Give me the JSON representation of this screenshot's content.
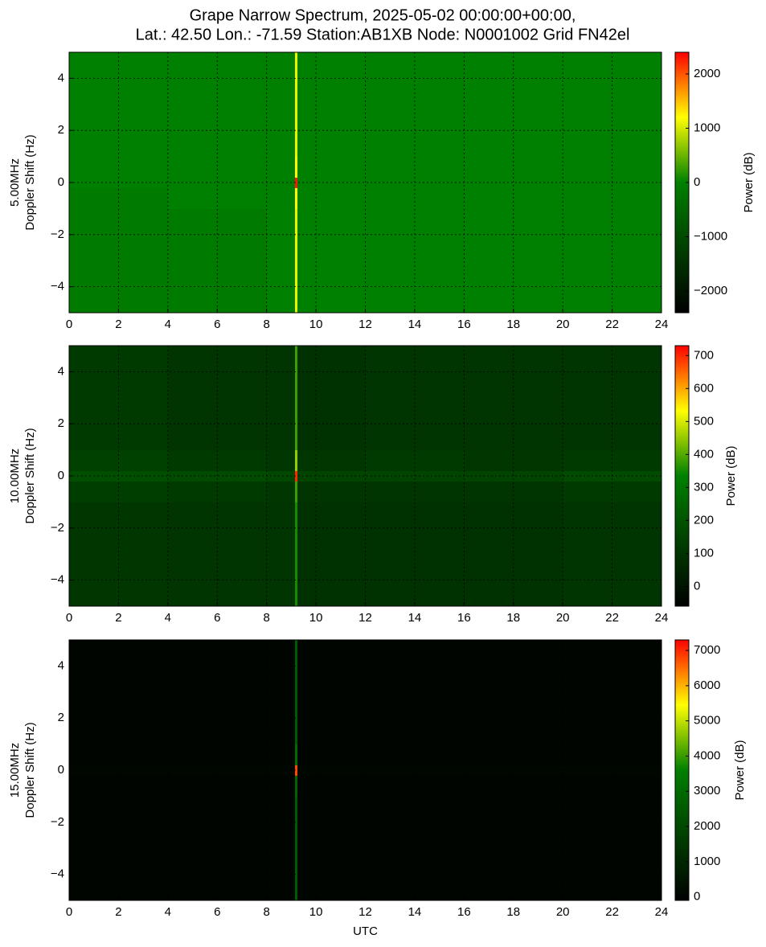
{
  "title": [
    "Grape Narrow Spectrum, 2025-05-02 00:00:00+00:00,",
    "Lat.: 42.50 Lon.: -71.59 Station:AB1XB Node: N0001002 Grid FN42el"
  ],
  "colormap": [
    {
      "pos": 0,
      "color": "#000000"
    },
    {
      "pos": 0.5,
      "color": "#008000"
    },
    {
      "pos": 0.75,
      "color": "#ffff00"
    },
    {
      "pos": 1,
      "color": "#ff0000"
    }
  ],
  "chart_data": [
    {
      "type": "heatmap",
      "ylabel": [
        "5.00MHz",
        "Doppler Shift (Hz)"
      ],
      "colorbar_label": "Power (dB)",
      "grid": true,
      "xlim": [
        0,
        24
      ],
      "ylim": [
        -5,
        5
      ],
      "xticks": [
        0,
        2,
        4,
        6,
        8,
        10,
        12,
        14,
        16,
        18,
        20,
        22,
        24
      ],
      "yticks": [
        {
          "value": -4,
          "label": "−4"
        },
        {
          "value": -2,
          "label": "−2"
        },
        0,
        2,
        4
      ],
      "clim": [
        -2400,
        2400
      ],
      "cticks": [
        {
          "value": -2000,
          "label": "−2000"
        },
        {
          "value": -1000,
          "label": "−1000"
        },
        0,
        1000,
        2000
      ],
      "xbins": [
        0,
        4,
        8,
        9.15,
        9.25,
        12,
        16,
        20,
        24
      ],
      "ybins": [
        -5,
        -1,
        -0.2,
        0.2,
        1,
        5
      ],
      "values": [
        [
          -100,
          -100,
          0,
          1100,
          0,
          0,
          0,
          0
        ],
        [
          -100,
          0,
          0,
          1200,
          0,
          0,
          0,
          0
        ],
        [
          0,
          0,
          0,
          2300,
          0,
          0,
          0,
          0
        ],
        [
          0,
          0,
          0,
          1200,
          0,
          0,
          0,
          0
        ],
        [
          0,
          0,
          0,
          1100,
          0,
          0,
          0,
          0
        ]
      ]
    },
    {
      "type": "heatmap",
      "ylabel": [
        "10.00MHz",
        "Doppler Shift (Hz)"
      ],
      "colorbar_label": "Power (dB)",
      "grid": true,
      "xlim": [
        0,
        24
      ],
      "ylim": [
        -5,
        5
      ],
      "xticks": [
        0,
        2,
        4,
        6,
        8,
        10,
        12,
        14,
        16,
        18,
        20,
        22,
        24
      ],
      "yticks": [
        {
          "value": -4,
          "label": "−4"
        },
        {
          "value": -2,
          "label": "−2"
        },
        0,
        2,
        4
      ],
      "clim": [
        -60,
        730
      ],
      "cticks": [
        0,
        100,
        200,
        300,
        400,
        500,
        600,
        700
      ],
      "xbins": [
        0,
        4,
        8,
        9.15,
        9.25,
        12,
        16,
        20,
        24
      ],
      "ybins": [
        -5,
        -1,
        -0.2,
        0.2,
        1,
        5
      ],
      "values": [
        [
          110,
          100,
          100,
          350,
          90,
          90,
          90,
          100
        ],
        [
          130,
          120,
          110,
          380,
          100,
          100,
          100,
          120
        ],
        [
          180,
          170,
          160,
          700,
          150,
          150,
          150,
          170
        ],
        [
          140,
          120,
          110,
          450,
          110,
          120,
          110,
          120
        ],
        [
          120,
          100,
          100,
          380,
          90,
          100,
          100,
          100
        ]
      ]
    },
    {
      "type": "heatmap",
      "ylabel": [
        "15.00MHz",
        "Doppler Shift (Hz)"
      ],
      "colorbar_label": "Power (dB)",
      "grid": true,
      "xlabel": "UTC",
      "xlim": [
        0,
        24
      ],
      "ylim": [
        -5,
        5
      ],
      "xticks": [
        0,
        2,
        4,
        6,
        8,
        10,
        12,
        14,
        16,
        18,
        20,
        22,
        24
      ],
      "yticks": [
        {
          "value": -4,
          "label": "−4"
        },
        {
          "value": -2,
          "label": "−2"
        },
        0,
        2,
        4
      ],
      "clim": [
        -100,
        7300
      ],
      "cticks": [
        0,
        1000,
        2000,
        3000,
        4000,
        5000,
        6000,
        7000
      ],
      "xbins": [
        0,
        4,
        8,
        9.15,
        9.25,
        12,
        16,
        20,
        24
      ],
      "ybins": [
        -5,
        -1,
        -0.2,
        0.2,
        1,
        5
      ],
      "values": [
        [
          50,
          50,
          50,
          2500,
          50,
          50,
          50,
          50
        ],
        [
          50,
          50,
          50,
          2800,
          50,
          50,
          50,
          50
        ],
        [
          60,
          60,
          60,
          6800,
          60,
          60,
          60,
          60
        ],
        [
          50,
          50,
          50,
          3000,
          50,
          50,
          50,
          50
        ],
        [
          50,
          50,
          50,
          2500,
          50,
          50,
          50,
          50
        ]
      ]
    }
  ]
}
